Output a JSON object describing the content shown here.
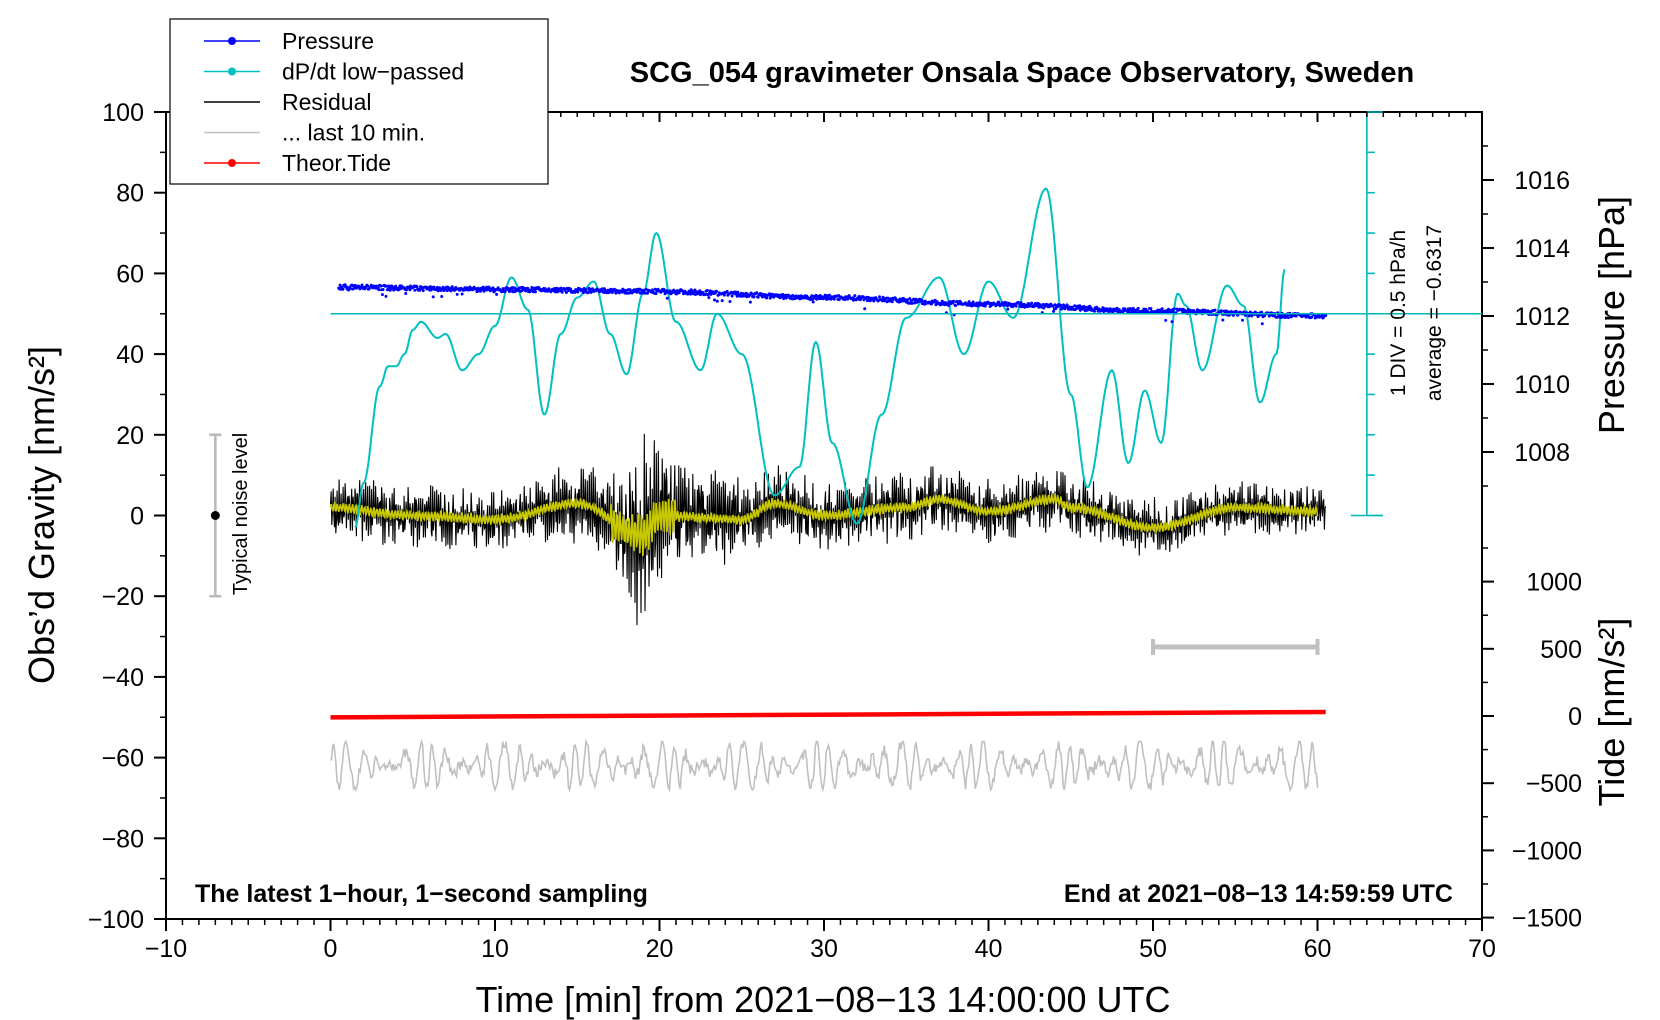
{
  "chart_data": {
    "type": "line",
    "title": "SCG_054 gravimeter Onsala Space Observatory, Sweden",
    "xlabel": "Time [min] from 2021−08−13 14:00:00 UTC",
    "ylabel_left": "Obs’d Gravity [nm/s²]",
    "ylabel_pressure": "Pressure [hPa]",
    "ylabel_tide": "Tide [nm/s²]",
    "xlim": [
      -10,
      70
    ],
    "ylim_left": [
      -100,
      100
    ],
    "x_ticks": [
      "−10",
      "0",
      "10",
      "20",
      "30",
      "40",
      "50",
      "60",
      "70"
    ],
    "y_ticks_left": [
      "100",
      "80",
      "60",
      "40",
      "20",
      "0",
      "−20",
      "−40",
      "−60",
      "−80",
      "−100"
    ],
    "y_ticks_pressure": [
      "1016",
      "1014",
      "1012",
      "1010",
      "1008"
    ],
    "y_ticks_tide": [
      "1000",
      "500",
      "0",
      "−500",
      "−1000",
      "−1500"
    ],
    "legend_position": "top-left",
    "legend": [
      {
        "label": "Pressure",
        "color": "#0000ff",
        "marker": true
      },
      {
        "label": "dP/dt low−passed",
        "color": "#00c0c0",
        "marker": true
      },
      {
        "label": "Residual",
        "color": "#000000",
        "marker": false
      },
      {
        "label": "... last 10 min.",
        "color": "#c0c0c0",
        "marker": false
      },
      {
        "label": "Theor.Tide",
        "color": "#ff0000",
        "marker": true
      }
    ],
    "annotations": {
      "noise_label": "Typical noise level",
      "noise_range": [
        -20,
        20
      ],
      "scale_label": "1 DIV = 0.5 hPa/h",
      "average_label": "average = −0.6317",
      "bottom_left": "The latest 1−hour, 1−second sampling",
      "bottom_right": "End at 2021−08−13 14:59:59 UTC",
      "last10_bar_range": [
        50,
        60
      ]
    },
    "series": [
      {
        "name": "Pressure",
        "color": "#0000ff",
        "axis": "pressure",
        "x": [
          0.5,
          10,
          20,
          30,
          40,
          50,
          60.5
        ],
        "values": [
          1012.85,
          1012.78,
          1012.72,
          1012.55,
          1012.35,
          1012.15,
          1012.0
        ]
      },
      {
        "name": "dP/dt low-passed",
        "color": "#00c0c0",
        "axis": "left",
        "x": [
          1.5,
          2,
          3,
          3.5,
          4,
          4.5,
          5,
          5.5,
          6.5,
          7,
          8,
          9,
          10,
          11,
          12,
          13,
          14,
          15,
          16,
          17,
          18,
          19,
          19.8,
          21,
          22.5,
          23.5,
          25,
          27,
          28.5,
          29.5,
          30.5,
          32,
          33.5,
          35,
          37,
          38.5,
          40,
          41.5,
          43.5,
          45,
          46,
          47.5,
          48.5,
          49.5,
          50.5,
          51.5,
          52,
          53,
          54.5,
          55.5,
          56.5,
          57.5,
          58
        ],
        "values": [
          -3,
          8,
          32,
          37,
          37,
          40,
          46,
          48,
          44,
          45,
          36,
          40,
          47,
          59,
          51,
          25,
          45,
          54,
          58,
          45,
          35,
          55,
          70,
          48,
          36,
          50,
          40,
          5,
          12,
          43,
          18,
          -2,
          25,
          49,
          59,
          40,
          58,
          49,
          81,
          30,
          7,
          36,
          13,
          31,
          18,
          55,
          52,
          36,
          57,
          52,
          28,
          40,
          61
        ]
      },
      {
        "name": "Residual",
        "color": "#000000",
        "axis": "left",
        "x_range": [
          0,
          60.5
        ],
        "envelope": [
          [
            0,
            8
          ],
          [
            10,
            7
          ],
          [
            17,
            10
          ],
          [
            19,
            25
          ],
          [
            21,
            12
          ],
          [
            30,
            8
          ],
          [
            40,
            8
          ],
          [
            50,
            7
          ],
          [
            60,
            6
          ]
        ]
      },
      {
        "name": "Residual low-passed",
        "color": "#c8c800",
        "axis": "left",
        "x": [
          0,
          5,
          10,
          15,
          19,
          20,
          25,
          27,
          30,
          35,
          37,
          40,
          44,
          45,
          50,
          55,
          60
        ],
        "values": [
          2,
          0,
          -1,
          3,
          -5,
          0,
          -1,
          3,
          0,
          2,
          4,
          1,
          4,
          2,
          -3,
          2,
          1
        ]
      },
      {
        "name": "... last 10 min.",
        "color": "#c0c0c0",
        "axis": "left",
        "x_range": [
          0,
          60
        ],
        "values": [
          -56,
          -68
        ]
      },
      {
        "name": "Theor.Tide",
        "color": "#ff0000",
        "axis": "tide",
        "x": [
          0,
          60.5
        ],
        "values": [
          -10,
          30
        ]
      }
    ]
  }
}
